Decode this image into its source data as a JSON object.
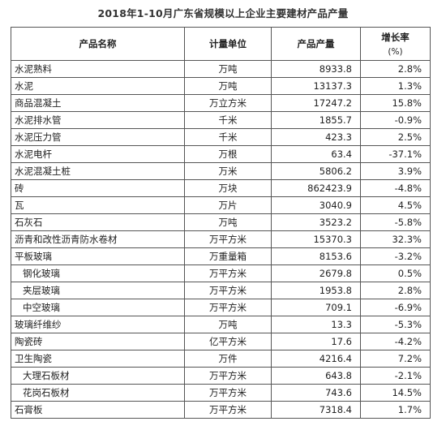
{
  "title": "2018年1-10月广东省规模以上企业主要建材产品产量",
  "columns": {
    "name": "产品名称",
    "unit": "计量单位",
    "output": "产品产量",
    "growth": "增长率",
    "growth_unit": "(%)"
  },
  "rows": [
    {
      "name": "水泥熟料",
      "unit": "万吨",
      "output": "8933.8",
      "growth": "2.8%",
      "indent": false
    },
    {
      "name": "水泥",
      "unit": "万吨",
      "output": "13137.3",
      "growth": "1.3%",
      "indent": false
    },
    {
      "name": "商品混凝土",
      "unit": "万立方米",
      "output": "17247.2",
      "growth": "15.8%",
      "indent": false
    },
    {
      "name": "水泥排水管",
      "unit": "千米",
      "output": "1855.7",
      "growth": "-0.9%",
      "indent": false
    },
    {
      "name": "水泥压力管",
      "unit": "千米",
      "output": "423.3",
      "growth": "2.5%",
      "indent": false
    },
    {
      "name": "水泥电杆",
      "unit": "万根",
      "output": "63.4",
      "growth": "-37.1%",
      "indent": false
    },
    {
      "name": "水泥混凝土桩",
      "unit": "万米",
      "output": "5806.2",
      "growth": "3.9%",
      "indent": false
    },
    {
      "name": "砖",
      "unit": "万块",
      "output": "862423.9",
      "growth": "-4.8%",
      "indent": false
    },
    {
      "name": "瓦",
      "unit": "万片",
      "output": "3040.9",
      "growth": "4.5%",
      "indent": false
    },
    {
      "name": "石灰石",
      "unit": "万吨",
      "output": "3523.2",
      "growth": "-5.8%",
      "indent": false
    },
    {
      "name": "沥青和改性沥青防水卷材",
      "unit": "万平方米",
      "output": "15370.3",
      "growth": "32.3%",
      "indent": false
    },
    {
      "name": "平板玻璃",
      "unit": "万重量箱",
      "output": "8153.6",
      "growth": "-3.2%",
      "indent": false
    },
    {
      "name": "钢化玻璃",
      "unit": "万平方米",
      "output": "2679.8",
      "growth": "0.5%",
      "indent": true
    },
    {
      "name": "夹层玻璃",
      "unit": "万平方米",
      "output": "1953.8",
      "growth": "2.8%",
      "indent": true
    },
    {
      "name": "中空玻璃",
      "unit": "万平方米",
      "output": "709.1",
      "growth": "-6.9%",
      "indent": true
    },
    {
      "name": "玻璃纤维纱",
      "unit": "万吨",
      "output": "13.3",
      "growth": "-5.3%",
      "indent": false
    },
    {
      "name": "陶瓷砖",
      "unit": "亿平方米",
      "output": "17.6",
      "growth": "-4.2%",
      "indent": false
    },
    {
      "name": "卫生陶瓷",
      "unit": "万件",
      "output": "4216.4",
      "growth": "7.2%",
      "indent": false
    },
    {
      "name": "大理石板材",
      "unit": "万平方米",
      "output": "643.8",
      "growth": "-2.1%",
      "indent": true
    },
    {
      "name": "花岗石板材",
      "unit": "万平方米",
      "output": "743.6",
      "growth": "14.5%",
      "indent": true
    },
    {
      "name": "石膏板",
      "unit": "万平方米",
      "output": "7318.4",
      "growth": "1.7%",
      "indent": false
    }
  ]
}
